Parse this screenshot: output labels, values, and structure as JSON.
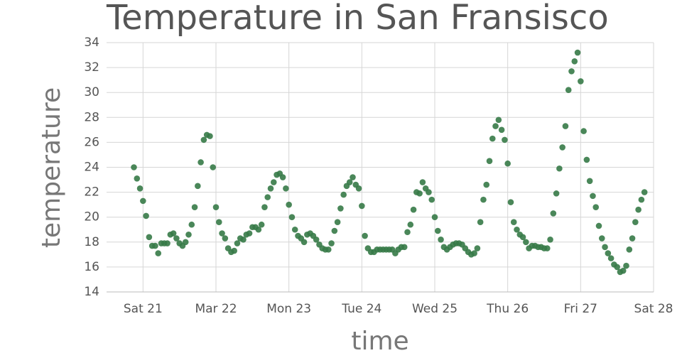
{
  "chart_data": {
    "type": "scatter",
    "title": "Temperature in San Fransisco",
    "x_label": "time",
    "y_label": "temperature",
    "color": "#367a47",
    "grid": true,
    "xlim": [
      "Mar 20 12:00",
      "Mar 28 00:00"
    ],
    "ylim": [
      14,
      34
    ],
    "yticks": [
      14,
      16,
      18,
      20,
      22,
      24,
      26,
      28,
      30,
      32,
      34
    ],
    "xticks": [
      {
        "value": "Mar 21 00:00",
        "label": "Sat 21"
      },
      {
        "value": "Mar 22 00:00",
        "label": "Mar 22"
      },
      {
        "value": "Mar 23 00:00",
        "label": "Mon 23"
      },
      {
        "value": "Mar 24 00:00",
        "label": "Tue 24"
      },
      {
        "value": "Mar 25 00:00",
        "label": "Wed 25"
      },
      {
        "value": "Mar 26 00:00",
        "label": "Thu 26"
      },
      {
        "value": "Mar 27 00:00",
        "label": "Fri 27"
      },
      {
        "value": "Mar 28 00:00",
        "label": "Sat 28"
      }
    ],
    "x": [
      "Mar 20 21:00",
      "Mar 20 22:00",
      "Mar 20 23:00",
      "Mar 21 00:00",
      "Mar 21 01:00",
      "Mar 21 02:00",
      "Mar 21 03:00",
      "Mar 21 04:00",
      "Mar 21 05:00",
      "Mar 21 06:00",
      "Mar 21 07:00",
      "Mar 21 08:00",
      "Mar 21 09:00",
      "Mar 21 10:00",
      "Mar 21 11:00",
      "Mar 21 12:00",
      "Mar 21 13:00",
      "Mar 21 14:00",
      "Mar 21 15:00",
      "Mar 21 16:00",
      "Mar 21 17:00",
      "Mar 21 18:00",
      "Mar 21 19:00",
      "Mar 21 20:00",
      "Mar 21 21:00",
      "Mar 21 22:00",
      "Mar 21 23:00",
      "Mar 22 00:00",
      "Mar 22 01:00",
      "Mar 22 02:00",
      "Mar 22 03:00",
      "Mar 22 04:00",
      "Mar 22 05:00",
      "Mar 22 06:00",
      "Mar 22 07:00",
      "Mar 22 08:00",
      "Mar 22 09:00",
      "Mar 22 10:00",
      "Mar 22 11:00",
      "Mar 22 12:00",
      "Mar 22 13:00",
      "Mar 22 14:00",
      "Mar 22 15:00",
      "Mar 22 16:00",
      "Mar 22 17:00",
      "Mar 22 18:00",
      "Mar 22 19:00",
      "Mar 22 20:00",
      "Mar 22 21:00",
      "Mar 22 22:00",
      "Mar 22 23:00",
      "Mar 23 00:00",
      "Mar 23 01:00",
      "Mar 23 02:00",
      "Mar 23 03:00",
      "Mar 23 04:00",
      "Mar 23 05:00",
      "Mar 23 06:00",
      "Mar 23 07:00",
      "Mar 23 08:00",
      "Mar 23 09:00",
      "Mar 23 10:00",
      "Mar 23 11:00",
      "Mar 23 12:00",
      "Mar 23 13:00",
      "Mar 23 14:00",
      "Mar 23 15:00",
      "Mar 23 16:00",
      "Mar 23 17:00",
      "Mar 23 18:00",
      "Mar 23 19:00",
      "Mar 23 20:00",
      "Mar 23 21:00",
      "Mar 23 22:00",
      "Mar 23 23:00",
      "Mar 24 00:00",
      "Mar 24 01:00",
      "Mar 24 02:00",
      "Mar 24 03:00",
      "Mar 24 04:00",
      "Mar 24 05:00",
      "Mar 24 06:00",
      "Mar 24 07:00",
      "Mar 24 08:00",
      "Mar 24 09:00",
      "Mar 24 10:00",
      "Mar 24 11:00",
      "Mar 24 12:00",
      "Mar 24 13:00",
      "Mar 24 14:00",
      "Mar 24 15:00",
      "Mar 24 16:00",
      "Mar 24 17:00",
      "Mar 24 18:00",
      "Mar 24 19:00",
      "Mar 24 20:00",
      "Mar 24 21:00",
      "Mar 24 22:00",
      "Mar 24 23:00",
      "Mar 25 00:00",
      "Mar 25 01:00",
      "Mar 25 02:00",
      "Mar 25 03:00",
      "Mar 25 04:00",
      "Mar 25 05:00",
      "Mar 25 06:00",
      "Mar 25 07:00",
      "Mar 25 08:00",
      "Mar 25 09:00",
      "Mar 25 10:00",
      "Mar 25 11:00",
      "Mar 25 12:00",
      "Mar 25 13:00",
      "Mar 25 14:00",
      "Mar 25 15:00",
      "Mar 25 16:00",
      "Mar 25 17:00",
      "Mar 25 18:00",
      "Mar 25 19:00",
      "Mar 25 20:00",
      "Mar 25 21:00",
      "Mar 25 22:00",
      "Mar 25 23:00",
      "Mar 26 00:00",
      "Mar 26 01:00",
      "Mar 26 02:00",
      "Mar 26 03:00",
      "Mar 26 04:00",
      "Mar 26 05:00",
      "Mar 26 06:00",
      "Mar 26 07:00",
      "Mar 26 08:00",
      "Mar 26 09:00",
      "Mar 26 10:00",
      "Mar 26 11:00",
      "Mar 26 12:00",
      "Mar 26 13:00",
      "Mar 26 14:00",
      "Mar 26 15:00",
      "Mar 26 16:00",
      "Mar 26 17:00",
      "Mar 26 18:00",
      "Mar 26 19:00",
      "Mar 26 20:00",
      "Mar 26 21:00",
      "Mar 26 22:00",
      "Mar 26 23:00",
      "Mar 27 00:00",
      "Mar 27 01:00",
      "Mar 27 02:00",
      "Mar 27 03:00",
      "Mar 27 04:00",
      "Mar 27 05:00",
      "Mar 27 06:00",
      "Mar 27 07:00",
      "Mar 27 08:00",
      "Mar 27 09:00",
      "Mar 27 10:00",
      "Mar 27 11:00",
      "Mar 27 12:00",
      "Mar 27 13:00",
      "Mar 27 14:00",
      "Mar 27 15:00",
      "Mar 27 16:00",
      "Mar 27 17:00",
      "Mar 27 18:00",
      "Mar 27 19:00",
      "Mar 27 20:00",
      "Mar 27 21:00"
    ],
    "values": [
      24.0,
      23.1,
      22.3,
      21.3,
      20.1,
      18.4,
      17.7,
      17.7,
      17.1,
      17.9,
      17.9,
      17.9,
      18.6,
      18.7,
      18.3,
      17.9,
      17.7,
      18.0,
      18.6,
      19.4,
      20.8,
      22.5,
      24.4,
      26.2,
      26.6,
      26.5,
      24.0,
      20.8,
      19.6,
      18.7,
      18.3,
      17.5,
      17.2,
      17.3,
      17.9,
      18.3,
      18.2,
      18.6,
      18.7,
      19.2,
      19.2,
      19.0,
      19.4,
      20.8,
      21.6,
      22.3,
      22.8,
      23.4,
      23.5,
      23.2,
      22.3,
      21.0,
      20.0,
      19.0,
      18.5,
      18.3,
      18.0,
      18.6,
      18.7,
      18.5,
      18.2,
      17.8,
      17.5,
      17.4,
      17.4,
      17.9,
      18.9,
      19.6,
      20.7,
      21.8,
      22.5,
      22.8,
      23.2,
      22.6,
      22.3,
      20.9,
      18.5,
      17.5,
      17.2,
      17.2,
      17.4,
      17.4,
      17.4,
      17.4,
      17.4,
      17.4,
      17.1,
      17.4,
      17.6,
      17.6,
      18.8,
      19.4,
      20.6,
      22.0,
      21.9,
      22.8,
      22.3,
      22.0,
      21.4,
      20.0,
      18.9,
      18.2,
      17.6,
      17.4,
      17.6,
      17.8,
      17.9,
      17.9,
      17.8,
      17.5,
      17.2,
      17.0,
      17.1,
      17.5,
      19.6,
      21.4,
      22.6,
      24.5,
      26.3,
      27.3,
      27.8,
      27.0,
      26.2,
      24.3,
      21.2,
      19.6,
      19.0,
      18.6,
      18.4,
      18.0,
      17.5,
      17.7,
      17.7,
      17.6,
      17.6,
      17.5,
      17.5,
      18.2,
      20.3,
      21.9,
      23.9,
      25.6,
      27.3,
      30.2,
      31.7,
      32.5,
      33.2,
      30.9,
      26.9,
      24.6,
      22.9,
      21.7,
      20.8,
      19.3,
      18.3,
      17.6,
      17.1,
      16.7,
      16.2,
      16.0,
      15.6,
      15.7,
      16.1,
      17.4,
      18.3,
      19.6,
      20.6,
      21.4,
      22.0
    ]
  }
}
